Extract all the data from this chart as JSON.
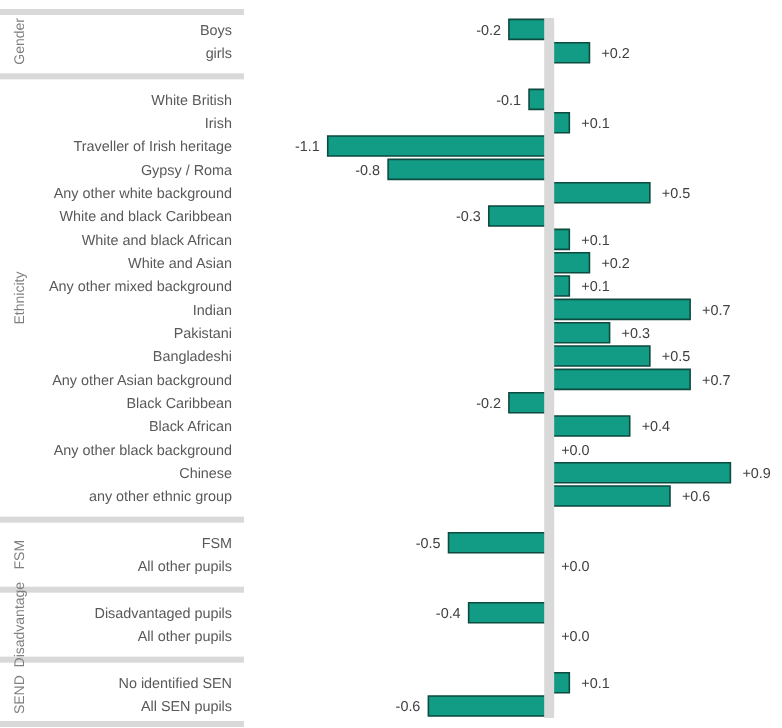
{
  "chart_data": {
    "type": "bar",
    "orientation": "horizontal",
    "categories": [
      "Boys",
      "girls",
      null,
      "White British",
      "Irish",
      "Traveller of Irish heritage",
      "Gypsy / Roma",
      "Any other white background",
      "White and black Caribbean",
      "White and black African",
      "White and Asian",
      "Any other mixed background",
      "Indian",
      "Pakistani",
      "Bangladeshi",
      "Any other Asian background",
      "Black Caribbean",
      "Black African",
      "Any other black background",
      "Chinese",
      "any other ethnic group",
      null,
      "FSM",
      "All other pupils",
      null,
      "Disadvantaged pupils",
      "All other pupils",
      null,
      "No identified SEN",
      "All SEN pupils"
    ],
    "values": [
      -0.2,
      0.2,
      null,
      -0.1,
      0.1,
      -1.1,
      -0.8,
      0.5,
      -0.3,
      0.1,
      0.2,
      0.1,
      0.7,
      0.3,
      0.5,
      0.7,
      -0.2,
      0.4,
      0.0,
      0.9,
      0.6,
      null,
      -0.5,
      0.0,
      null,
      -0.4,
      0.0,
      null,
      0.1,
      -0.6
    ],
    "value_labels": [
      "-0.2",
      "+0.2",
      null,
      "-0.1",
      "+0.1",
      "-1.1",
      "-0.8",
      "+0.5",
      "-0.3",
      "+0.1",
      "+0.2",
      "+0.1",
      "+0.7",
      "+0.3",
      "+0.5",
      "+0.7",
      "-0.2",
      "+0.4",
      "+0.0",
      "+0.9",
      "+0.6",
      null,
      "-0.5",
      "+0.0",
      null,
      "-0.4",
      "+0.0",
      null,
      "+0.1",
      "-0.6"
    ],
    "color": "#139c85",
    "annotations": [
      "Gender",
      "Ethnicity",
      "FSM",
      "Disadvantage",
      "SEND"
    ]
  }
}
